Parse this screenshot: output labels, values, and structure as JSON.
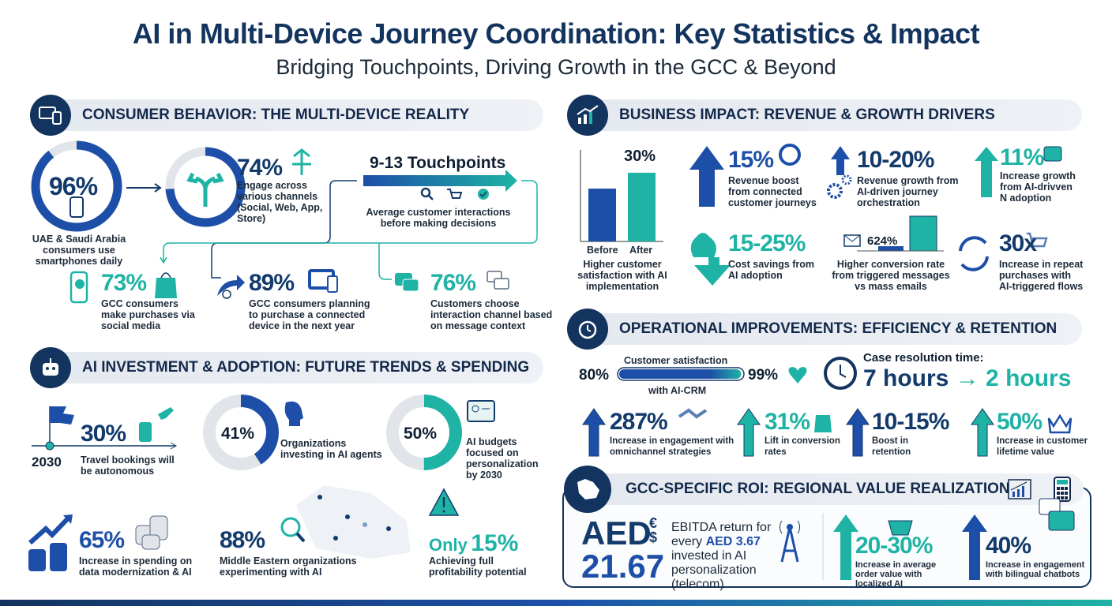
{
  "title": "AI in Multi-Device Journey Coordination: Key Statistics & Impact",
  "subtitle": "Bridging Touchpoints, Driving Growth in the GCC & Beyond",
  "colors": {
    "navy": "#123a6b",
    "blue": "#1d4fa8",
    "teal": "#1fb3a5",
    "header_bg": "#e6eaf0"
  },
  "consumer": {
    "header": "CONSUMER BEHAVIOR: THE MULTI-DEVICE REALITY",
    "smartphones": {
      "value": "96%",
      "fill": 0.96,
      "desc": "UAE & Saudi Arabia consumers use smartphones daily"
    },
    "channels": {
      "value": "74%",
      "fill": 0.74,
      "desc": "Engage across various channels (Social, Web, App, Store)"
    },
    "touchpoints": {
      "value": "9-13 Touchpoints",
      "desc": "Average customer interactions before making decisions"
    },
    "social": {
      "value": "73%",
      "desc": "GCC consumers make purchases via social media"
    },
    "device": {
      "value": "89%",
      "desc": "GCC consumers planning to purchase a connected device in the next year"
    },
    "channel_choice": {
      "value": "76%",
      "desc": "Customers choose interaction channel based on message context"
    }
  },
  "investment": {
    "header": "AI INVESTMENT & ADOPTION: FUTURE TRENDS & SPENDING",
    "travel": {
      "year": "2030",
      "value": "30%",
      "desc": "Travel bookings will be autonomous"
    },
    "agents": {
      "value": "41%",
      "fill": 0.41,
      "desc": "Organizations investing in AI agents"
    },
    "budgets": {
      "value": "50%",
      "fill": 0.5,
      "desc": "AI budgets focused on personalization by 2030"
    },
    "spending": {
      "value": "65%",
      "desc": "Increase in spending on data modernization & AI"
    },
    "experimenting": {
      "value": "88%",
      "desc": "Middle Eastern organizations experimenting with AI"
    },
    "profitability": {
      "prefix": "Only",
      "value": "15%",
      "desc": "Achieving full profitability potential"
    }
  },
  "business": {
    "header": "BUSINESS IMPACT: REVENUE & GROWTH DRIVERS",
    "satisfaction_chart": {
      "value": "30%",
      "before_label": "Before",
      "after_label": "After",
      "before": 1,
      "after": 1.3,
      "desc": "Higher customer satisfaction with AI implementation"
    },
    "revenue_boost": {
      "value": "15%",
      "desc": "Revenue boost from connected customer journeys"
    },
    "revenue_growth": {
      "value": "10-20%",
      "desc": "Revenue growth from AI-driven journey orchestration"
    },
    "increase_growth": {
      "value": "11%",
      "desc": "Increase growth from AI-drivven N adoption"
    },
    "cost_savings": {
      "value": "15-25%",
      "desc": "Cost savings from AI adoption"
    },
    "conversion": {
      "value": "624%",
      "desc": "Higher conversion rate from triggered messages vs mass emails"
    },
    "repeat": {
      "value": "30x",
      "desc": "Increase in repeat purchases with AI-triggered flows"
    }
  },
  "operational": {
    "header": "OPERATIONAL IMPROVEMENTS: EFFICIENCY & RETENTION",
    "csat": {
      "label": "Customer satisfaction",
      "sub": "with AI-CRM",
      "from": "80%",
      "to": "99%"
    },
    "resolution": {
      "label": "Case resolution time:",
      "from": "7 hours",
      "arrow": "→",
      "to": "2 hours"
    },
    "items": [
      {
        "value": "287%",
        "desc": "Increase in engagement with omnichannel strategies"
      },
      {
        "value": "31%",
        "desc": "Lift in conversion rates"
      },
      {
        "value": "10-15%",
        "desc": "Boost in retention"
      },
      {
        "value": "50%",
        "desc": "Increase in customer lifetime value"
      }
    ]
  },
  "gcc": {
    "header": "GCC-SPECIFIC ROI: REGIONAL VALUE REALIZATION",
    "roi_icon_text": "ROI",
    "aed": {
      "currency": "AED",
      "value": "21.67",
      "desc_1": "EBITDA return for every",
      "desc_hl": "AED 3.67",
      "desc_2": "invested in AI personalization (telecom)"
    },
    "order": {
      "value": "20-30%",
      "desc": "Increase in average order value with localized AI"
    },
    "chatbots": {
      "value": "40%",
      "desc": "Increase in engagement with bilingual chatbots"
    }
  }
}
